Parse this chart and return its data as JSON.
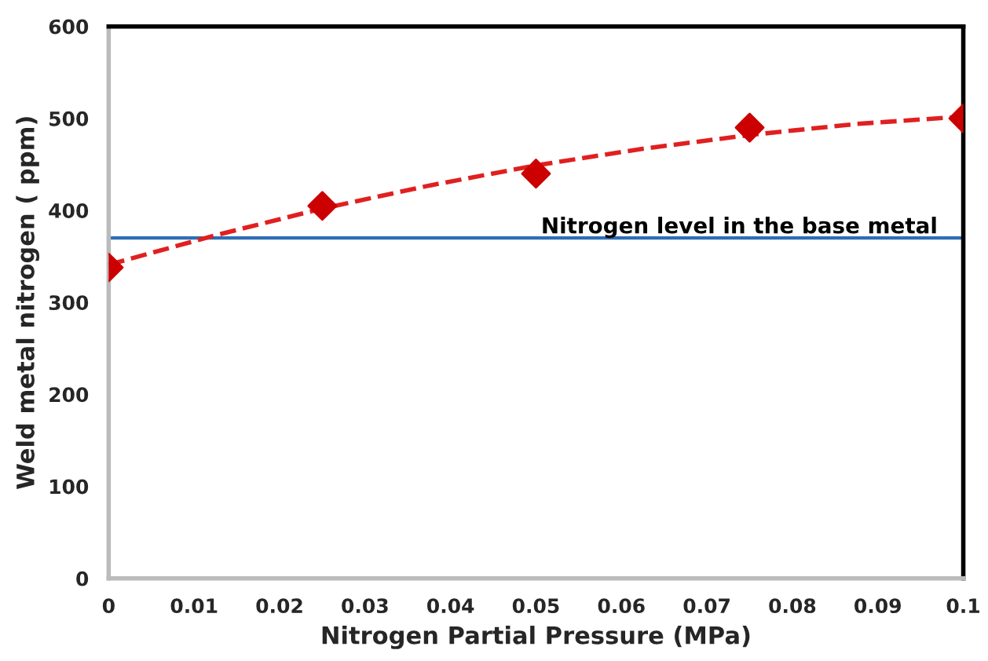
{
  "chart_data": {
    "type": "scatter",
    "xlabel": "Nitrogen Partial Pressure (MPa)",
    "ylabel": "Weld metal nitrogen ( ppm)",
    "xlim": [
      0,
      0.1
    ],
    "xticks": [
      0,
      0.01,
      0.02,
      0.03,
      0.04,
      0.05,
      0.06,
      0.07,
      0.08,
      0.09,
      0.1
    ],
    "ylim": [
      0,
      600
    ],
    "yticks": [
      0,
      100,
      200,
      300,
      400,
      500,
      600
    ],
    "grid": false,
    "legend": false,
    "series": [
      {
        "color": "#cc0000",
        "marker": "diamond",
        "x": [
          0,
          0.025,
          0.05,
          0.075,
          0.1
        ],
        "values": [
          338,
          405,
          440,
          490,
          500
        ]
      },
      {
        "type": "line",
        "color": "#e02020",
        "line_style": "dashed",
        "marker": "none",
        "x": [
          0,
          0.0125,
          0.025,
          0.0375,
          0.05,
          0.0625,
          0.075,
          0.0875,
          0.1
        ],
        "values": [
          341,
          373,
          402,
          427,
          449,
          467,
          482,
          494,
          502
        ]
      }
    ],
    "ref_lines": [
      {
        "axis": "y",
        "value": 370,
        "label": "Nitrogen level in the base metal",
        "color": "#2e6db4",
        "line_style": "solid"
      }
    ]
  }
}
